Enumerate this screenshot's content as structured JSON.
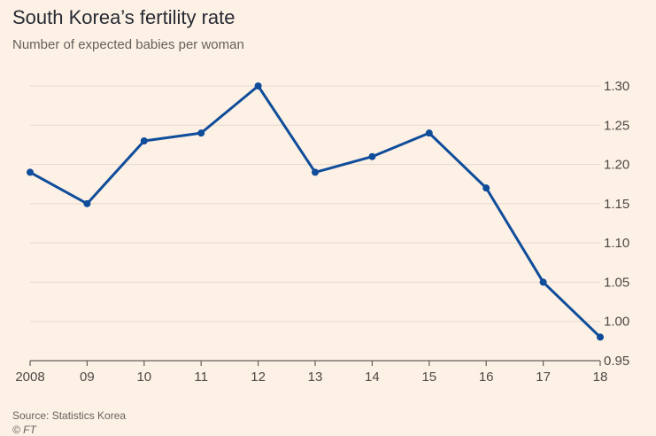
{
  "chart_data": {
    "type": "line",
    "title": "South Korea’s fertility rate",
    "subtitle": "Number of expected babies per woman",
    "categories": [
      "2008",
      "09",
      "10",
      "11",
      "12",
      "13",
      "14",
      "15",
      "16",
      "17",
      "18"
    ],
    "series": [
      {
        "values": [
          1.19,
          1.15,
          1.23,
          1.24,
          1.3,
          1.19,
          1.21,
          1.24,
          1.17,
          1.05,
          0.98
        ]
      }
    ],
    "y_ticks": [
      "0.95",
      "1.00",
      "1.05",
      "1.10",
      "1.15",
      "1.20",
      "1.25",
      "1.30"
    ],
    "ylim": [
      0.95,
      1.3
    ],
    "y_axis_position": "right",
    "grid": true,
    "line_color": "#0f4c9a",
    "grid_color": "#e6d9ce",
    "axis_color": "#66605c"
  },
  "footer": {
    "source": "Source: Statistics Korea",
    "credit": "© FT"
  }
}
